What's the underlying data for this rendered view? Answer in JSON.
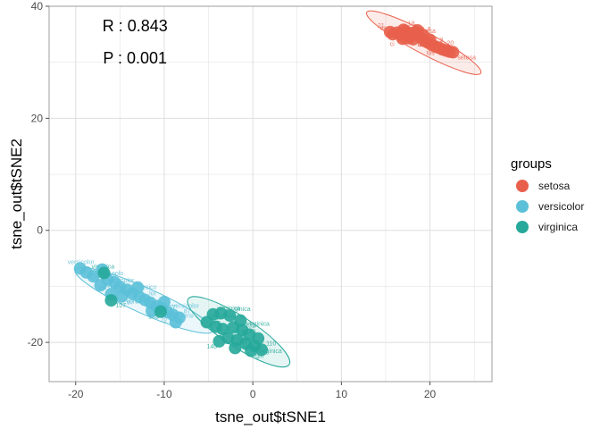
{
  "chart_data": {
    "type": "scatter",
    "xlabel": "tsne_out$tSNE1",
    "ylabel": "tsne_out$tSNE2",
    "xlim": [
      -23,
      27
    ],
    "ylim": [
      -27,
      40
    ],
    "x_ticks": [
      -20,
      -10,
      0,
      10,
      20
    ],
    "y_ticks": [
      -20,
      0,
      20,
      40
    ],
    "grid": true,
    "annotations": [
      {
        "text": "R : 0.843",
        "x": -13.3,
        "y": 35.5
      },
      {
        "text": "P : 0.001",
        "x": -13.3,
        "y": 29.8
      }
    ],
    "legend": {
      "title": "groups",
      "position": "right"
    },
    "series": [
      {
        "name": "setosa",
        "color": "#e8604c",
        "ellipse": {
          "cx": 19.3,
          "cy": 33.5,
          "rx": 7.3,
          "ry": 1.9,
          "angle_deg": -28
        },
        "points": [
          [
            15.8,
            35.0
          ],
          [
            16.3,
            35.3
          ],
          [
            16.8,
            34.9
          ],
          [
            17.2,
            35.6
          ],
          [
            17.6,
            35.2
          ],
          [
            18.0,
            34.8
          ],
          [
            18.4,
            35.4
          ],
          [
            18.1,
            34.1
          ],
          [
            17.5,
            34.3
          ],
          [
            16.9,
            34.2
          ],
          [
            19.0,
            34.4
          ],
          [
            19.4,
            33.8
          ],
          [
            19.8,
            33.5
          ],
          [
            20.2,
            33.1
          ],
          [
            20.6,
            32.8
          ],
          [
            21.0,
            32.6
          ],
          [
            21.4,
            32.3
          ],
          [
            21.8,
            32.1
          ],
          [
            22.2,
            31.9
          ],
          [
            22.6,
            31.8
          ],
          [
            19.2,
            34.9
          ],
          [
            20.0,
            34.0
          ],
          [
            17.0,
            35.8
          ],
          [
            18.6,
            35.7
          ],
          [
            15.5,
            35.4
          ]
        ],
        "labels": [
          "sa",
          "se",
          "setosa",
          "4",
          "2",
          "18",
          "s",
          "ta",
          "12",
          "ci",
          "osa",
          "16",
          "setosa",
          "8",
          "3",
          "tos",
          "20",
          "11",
          "ci",
          "setosa",
          "a",
          "4",
          "18",
          "8",
          "21"
        ]
      },
      {
        "name": "versicolor",
        "color": "#5bc0d8",
        "ellipse": {
          "cx": -12.3,
          "cy": -12.5,
          "rx": 8.5,
          "ry": 2.3,
          "angle_deg": -24
        },
        "points": [
          [
            -19.5,
            -6.8
          ],
          [
            -18.8,
            -7.5
          ],
          [
            -18.0,
            -8.2
          ],
          [
            -17.0,
            -7.0
          ],
          [
            -16.4,
            -8.8
          ],
          [
            -15.6,
            -9.3
          ],
          [
            -15.0,
            -10.1
          ],
          [
            -14.2,
            -10.6
          ],
          [
            -13.6,
            -11.3
          ],
          [
            -12.8,
            -11.9
          ],
          [
            -12.2,
            -12.4
          ],
          [
            -11.6,
            -12.9
          ],
          [
            -10.9,
            -13.5
          ],
          [
            -10.3,
            -13.9
          ],
          [
            -9.6,
            -14.6
          ],
          [
            -9.0,
            -15.1
          ],
          [
            -8.3,
            -15.6
          ],
          [
            -14.8,
            -11.8
          ],
          [
            -16.0,
            -11.4
          ],
          [
            -11.4,
            -14.4
          ],
          [
            -8.7,
            -16.4
          ],
          [
            -13.0,
            -10.2
          ],
          [
            -17.2,
            -9.8
          ],
          [
            -10.0,
            -12.8
          ]
        ],
        "labels": [
          "versicolor",
          "vers",
          "94",
          "versicolor",
          "colo",
          "81",
          "versicolor",
          "59",
          "versico",
          "97",
          "lor",
          "63",
          "85",
          "olor",
          "versicolor",
          "72",
          "87",
          "vers",
          "versicolor",
          "86",
          "versi",
          "93",
          "si",
          "77"
        ]
      },
      {
        "name": "virginica",
        "color": "#26a99a",
        "ellipse": {
          "cx": -1.6,
          "cy": -18.1,
          "rx": 6.8,
          "ry": 2.7,
          "angle_deg": -33
        },
        "points": [
          [
            -16.8,
            -7.6
          ],
          [
            -16.0,
            -12.5
          ],
          [
            -4.5,
            -15.0
          ],
          [
            -3.6,
            -14.8
          ],
          [
            -2.6,
            -15.2
          ],
          [
            -4.2,
            -17.2
          ],
          [
            -3.4,
            -17.6
          ],
          [
            -2.2,
            -17.3
          ],
          [
            -1.2,
            -17.8
          ],
          [
            -0.4,
            -18.6
          ],
          [
            -2.8,
            -19.2
          ],
          [
            -1.8,
            -19.6
          ],
          [
            -0.8,
            -20.2
          ],
          [
            0.2,
            -20.6
          ],
          [
            1.0,
            -21.3
          ],
          [
            -3.8,
            -19.8
          ],
          [
            -2.0,
            -21.0
          ],
          [
            -0.2,
            -21.5
          ],
          [
            0.6,
            -19.3
          ],
          [
            -1.4,
            -16.1
          ],
          [
            -5.2,
            -16.4
          ],
          [
            -10.4,
            -14.5
          ]
        ],
        "labels": [
          "virginica",
          "107",
          "virginica",
          "114",
          "ginica",
          "124",
          "virg",
          "132",
          "virginica",
          "109",
          "nica",
          "119",
          "106",
          "virginica",
          "110",
          "140",
          "vir",
          "gin",
          "148",
          "131",
          "virginica",
          "135"
        ]
      }
    ]
  }
}
